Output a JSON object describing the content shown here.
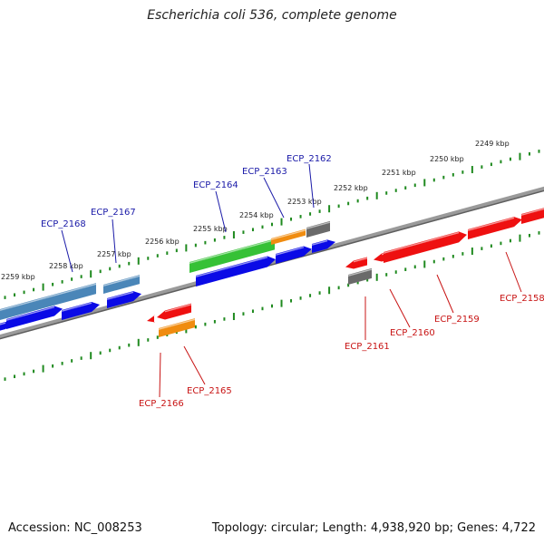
{
  "title": "Escherichia coli 536, complete genome",
  "footer": {
    "accession": "Accession: NC_008253",
    "topology": "Topology: circular; Length: 4,938,920 bp; Genes: 4,722"
  },
  "colors": {
    "backbone": "#7d7d7d",
    "tick_dots": "#1f8a1f",
    "forward_cds": "#0a0ae6",
    "reverse_cds": "#ee1010",
    "steel_blue_gene": "#4a86b8",
    "green_gene": "#36c136",
    "orange_gene": "#f08c10",
    "gray_gene": "#6a6a6a",
    "label_blue": "#1a1aa8",
    "label_red": "#c81414"
  },
  "ticks": [
    "2249 kbp",
    "2250 kbp",
    "2251 kbp",
    "2252 kbp",
    "2253 kbp",
    "2254 kbp",
    "2255 kbp",
    "2256 kbp",
    "2257 kbp",
    "2258 kbp",
    "2259 kbp"
  ],
  "top_labels": [
    "ECP_2162",
    "ECP_2163",
    "ECP_2164",
    "ECP_2167",
    "ECP_2168"
  ],
  "bottom_labels": [
    "ECP_2158",
    "ECP_2159",
    "ECP_2160",
    "ECP_2161",
    "ECP_2165",
    "ECP_2166"
  ]
}
